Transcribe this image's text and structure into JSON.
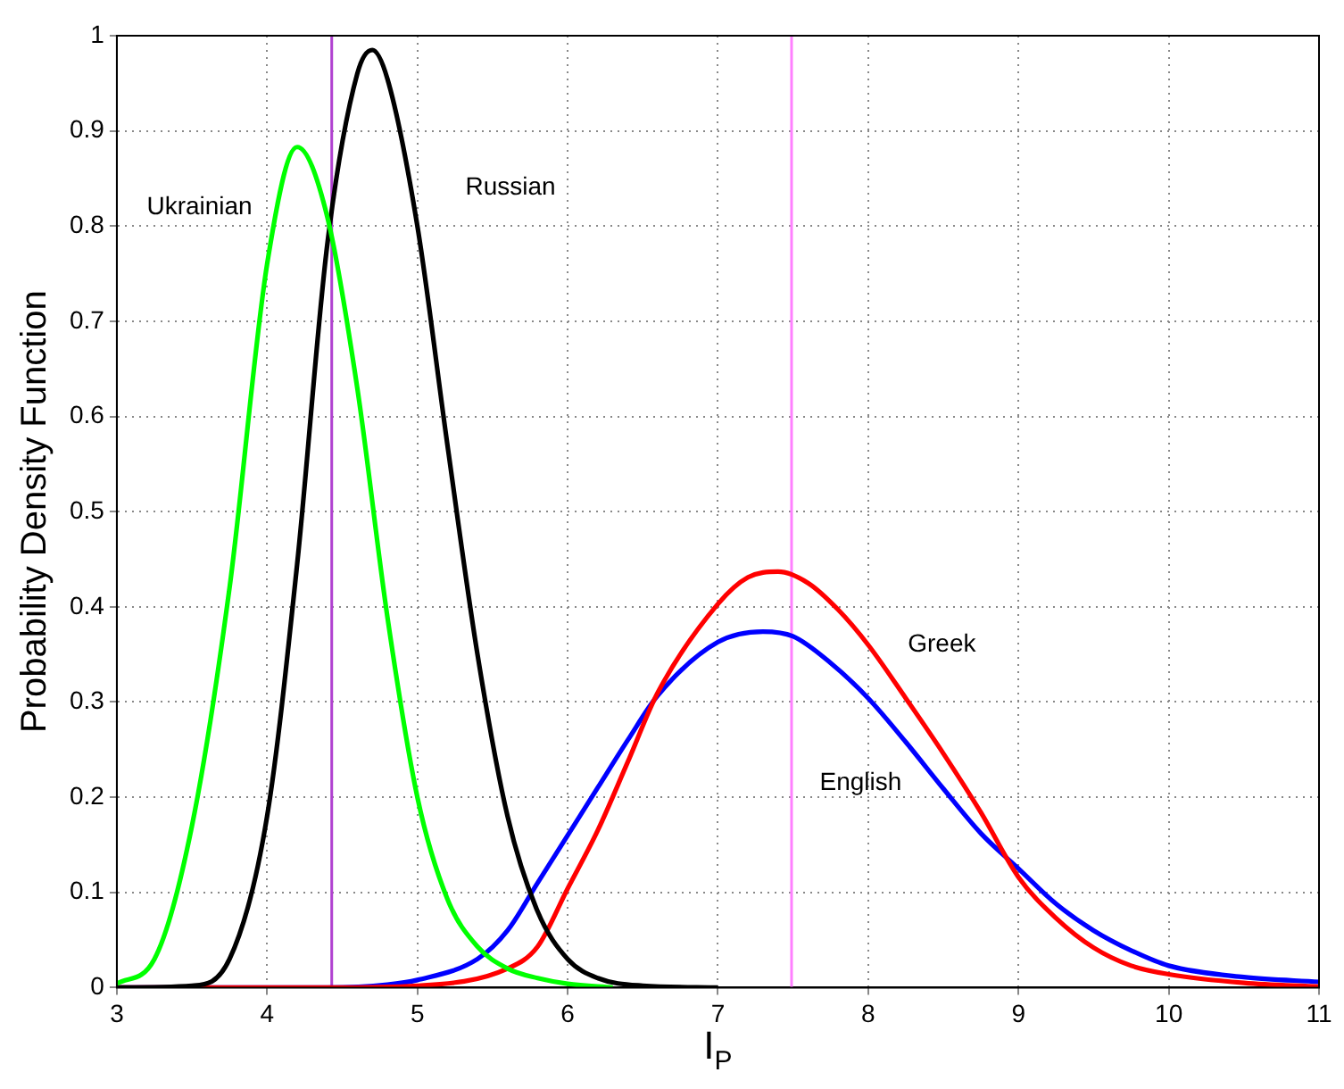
{
  "chart_data": {
    "type": "line",
    "xlabel": "I$_{P}$",
    "ylabel": "Probability Density Function",
    "xlim": [
      3,
      11
    ],
    "ylim": [
      0,
      1
    ],
    "xticks": [
      3,
      4,
      5,
      6,
      7,
      8,
      9,
      10,
      11
    ],
    "yticks": [
      0,
      0.1,
      0.2,
      0.3,
      0.4,
      0.5,
      0.6,
      0.7,
      0.8,
      0.9,
      1
    ],
    "grid": true,
    "legend": false,
    "marker": "none",
    "line_style": "solid",
    "ref_lines": [
      {
        "axis": "x",
        "value": 4.43,
        "color": "#b040d0"
      },
      {
        "axis": "x",
        "value": 7.49,
        "color": "#ff80ff"
      }
    ],
    "series": [
      {
        "name": "Ukrainian",
        "color": "#00ff00",
        "x": [
          3,
          3.25,
          3.5,
          3.75,
          4,
          4.2,
          4.4,
          4.6,
          4.8,
          5,
          5.2,
          5.4,
          5.6,
          5.8,
          6,
          6.3
        ],
        "values": [
          0.004,
          0.03,
          0.17,
          0.42,
          0.76,
          0.883,
          0.81,
          0.63,
          0.39,
          0.2,
          0.093,
          0.043,
          0.02,
          0.01,
          0.004,
          0
        ]
      },
      {
        "name": "Russian",
        "color": "#000000",
        "x": [
          3,
          3.5,
          3.75,
          4,
          4.2,
          4.4,
          4.6,
          4.7,
          4.8,
          5,
          5.2,
          5.4,
          5.6,
          5.8,
          6,
          6.2,
          6.5,
          7
        ],
        "values": [
          0,
          0.002,
          0.03,
          0.18,
          0.445,
          0.78,
          0.96,
          0.985,
          0.955,
          0.8,
          0.57,
          0.35,
          0.18,
          0.08,
          0.03,
          0.01,
          0.002,
          0
        ]
      },
      {
        "name": "Greek",
        "color": "#ff0000",
        "x": [
          3,
          4.4,
          5,
          5.6,
          5.8,
          6,
          6.2,
          6.4,
          6.6,
          7,
          7.2,
          7.4,
          7.6,
          7.8,
          8,
          8.25,
          8.5,
          8.75,
          9,
          9.25,
          9.5,
          9.75,
          10,
          10.5,
          11
        ],
        "values": [
          0,
          0,
          0.002,
          0.02,
          0.043,
          0.104,
          0.165,
          0.237,
          0.31,
          0.403,
          0.431,
          0.437,
          0.425,
          0.397,
          0.36,
          0.304,
          0.246,
          0.184,
          0.116,
          0.073,
          0.042,
          0.023,
          0.014,
          0.005,
          0.001
        ]
      },
      {
        "name": "English",
        "color": "#0000ff",
        "x": [
          3,
          4.4,
          4.8,
          5,
          5.4,
          5.6,
          5.8,
          6,
          6.2,
          6.4,
          6.6,
          7,
          7.3,
          7.5,
          7.75,
          8,
          8.25,
          8.5,
          8.75,
          9,
          9.25,
          9.5,
          9.75,
          10,
          10.5,
          11
        ],
        "values": [
          0,
          0,
          0.003,
          0.008,
          0.03,
          0.06,
          0.11,
          0.16,
          0.21,
          0.26,
          0.307,
          0.363,
          0.374,
          0.369,
          0.341,
          0.304,
          0.258,
          0.209,
          0.162,
          0.125,
          0.088,
          0.06,
          0.039,
          0.023,
          0.011,
          0.006
        ]
      }
    ]
  }
}
